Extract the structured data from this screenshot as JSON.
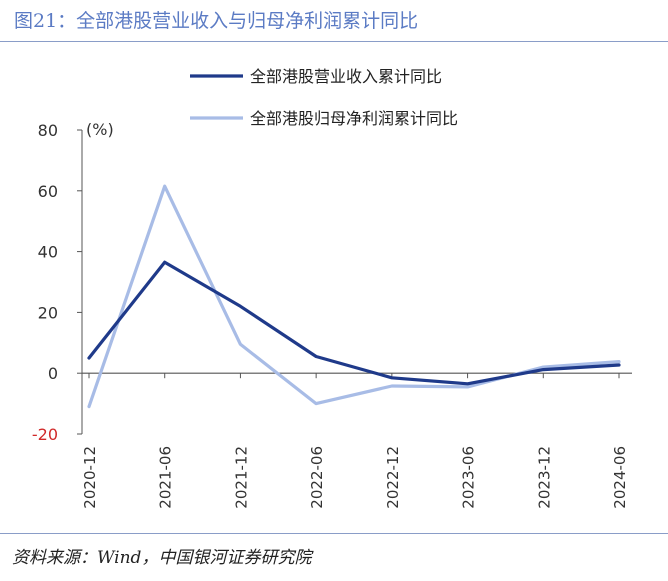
{
  "figure": {
    "title": "图21：全部港股营业收入与归母净利润累计同比",
    "source": "资料来源：Wind，中国银河证券研究院"
  },
  "colors": {
    "revenue": "#1f3a8a",
    "profit": "#a8bce6",
    "title": "#5b7bc4",
    "negative_tick": "#d12a2a",
    "axis": "#555555"
  },
  "chart_data": {
    "type": "line",
    "title": "全部港股营业收入与归母净利润累计同比",
    "unit_label": "(%)",
    "categories": [
      "2020-12",
      "2021-06",
      "2021-12",
      "2022-06",
      "2022-12",
      "2023-06",
      "2023-12",
      "2024-06"
    ],
    "series": [
      {
        "name": "全部港股营业收入累计同比",
        "color": "#1f3a8a",
        "values": [
          5,
          36.5,
          22,
          5.5,
          -1.5,
          -3.5,
          1.2,
          2.7
        ]
      },
      {
        "name": "全部港股归母净利润累计同比",
        "color": "#a8bce6",
        "values": [
          -11,
          61.5,
          9.5,
          -10,
          -4.2,
          -4.5,
          2.0,
          3.8
        ]
      }
    ],
    "ylim": [
      -20,
      80
    ],
    "yticks": [
      80,
      60,
      40,
      20,
      0,
      -20
    ],
    "ytick_labels": [
      "80",
      "60",
      "40",
      "20",
      "0",
      "-20"
    ],
    "xlabel": "",
    "ylabel": "",
    "legend_position": "top-center"
  }
}
